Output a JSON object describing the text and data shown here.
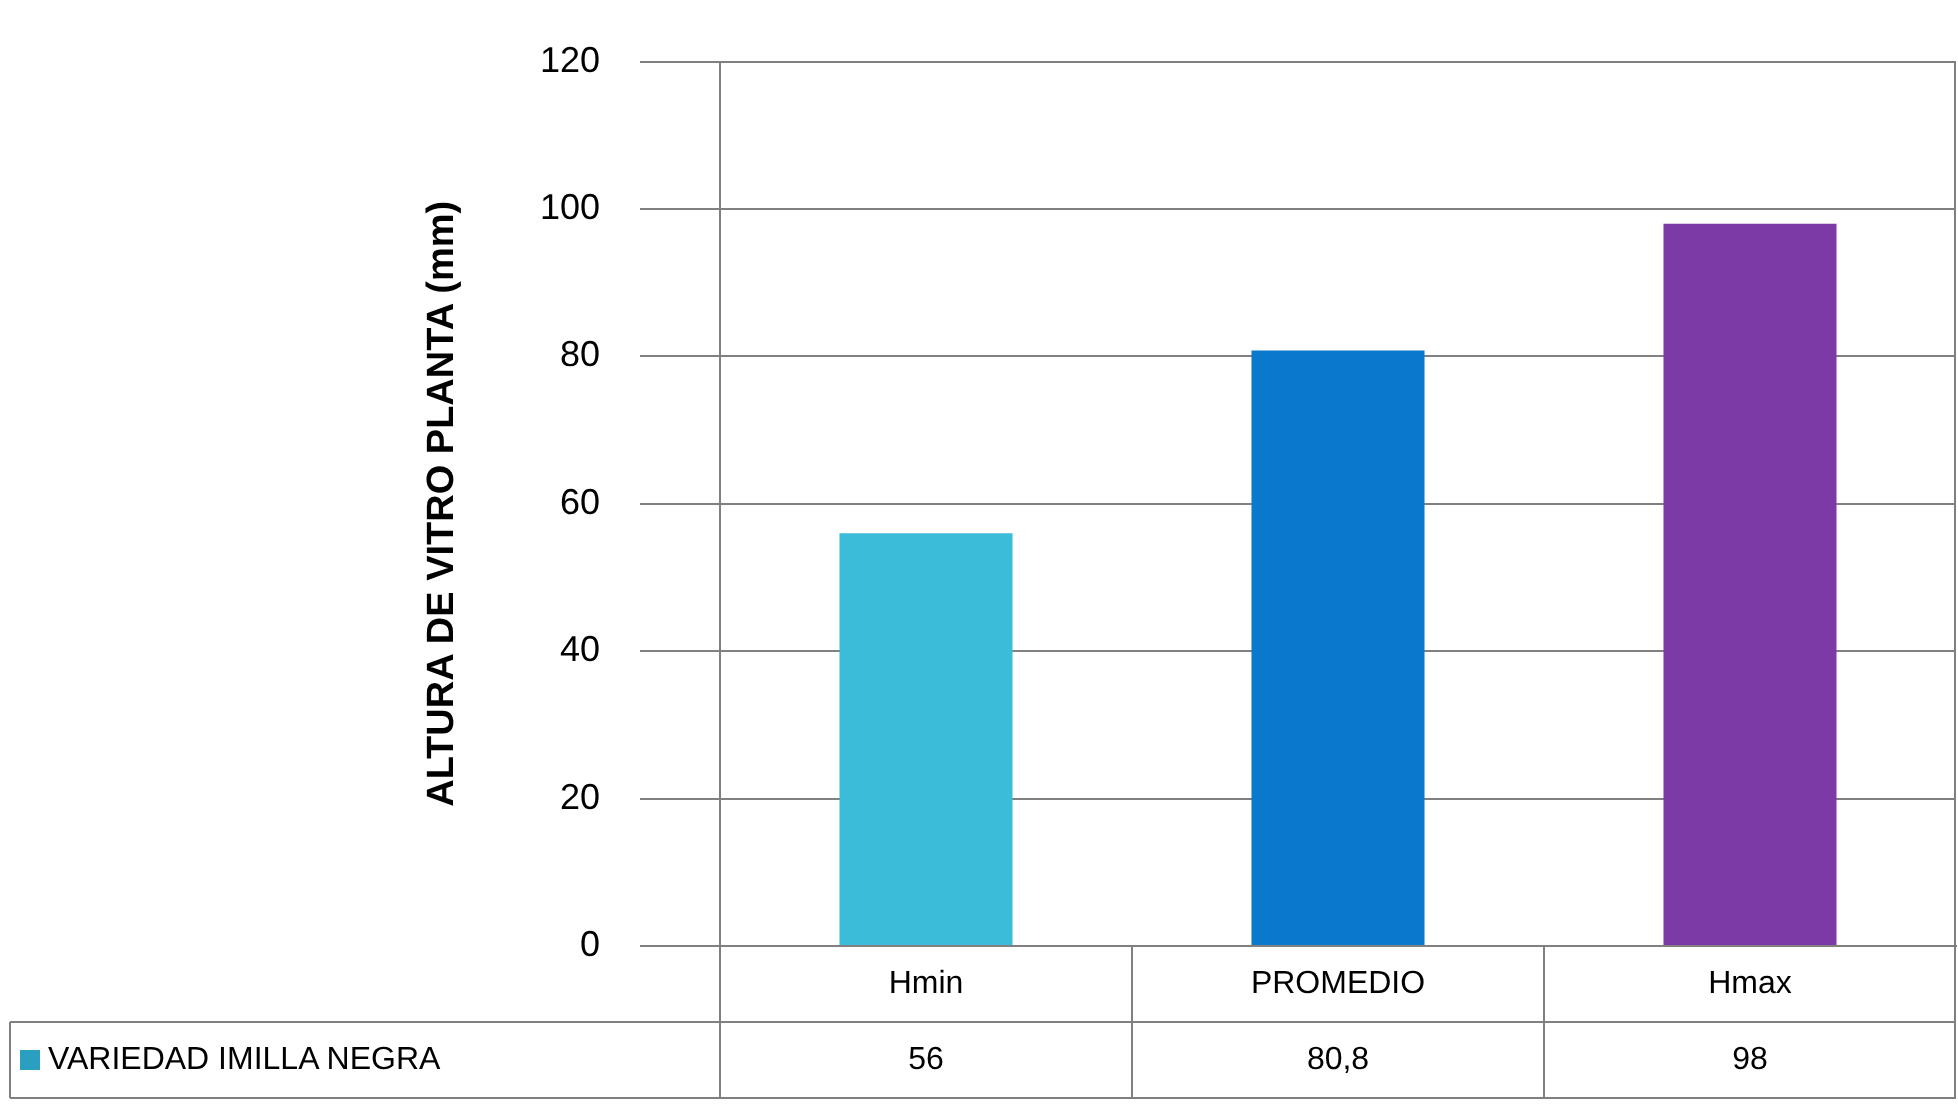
{
  "chart_data": {
    "type": "bar",
    "ylabel": "ALTURA DE VITRO PLANTA (mm)",
    "categories": [
      "Hmin",
      "PROMEDIO",
      "Hmax"
    ],
    "series": [
      {
        "name": "VARIEDAD IMILLA NEGRA",
        "color": "#2a9fc0",
        "colors": [
          "#3bbcd9",
          "#0a78cc",
          "#7b3aa6"
        ],
        "values": [
          56,
          80.8,
          98
        ],
        "value_labels": [
          "56",
          "80,8",
          "98"
        ]
      }
    ],
    "ylim": [
      0,
      120
    ],
    "yticks": [
      0,
      20,
      40,
      60,
      80,
      100,
      120
    ],
    "grid": "y",
    "legend": "bottom"
  }
}
